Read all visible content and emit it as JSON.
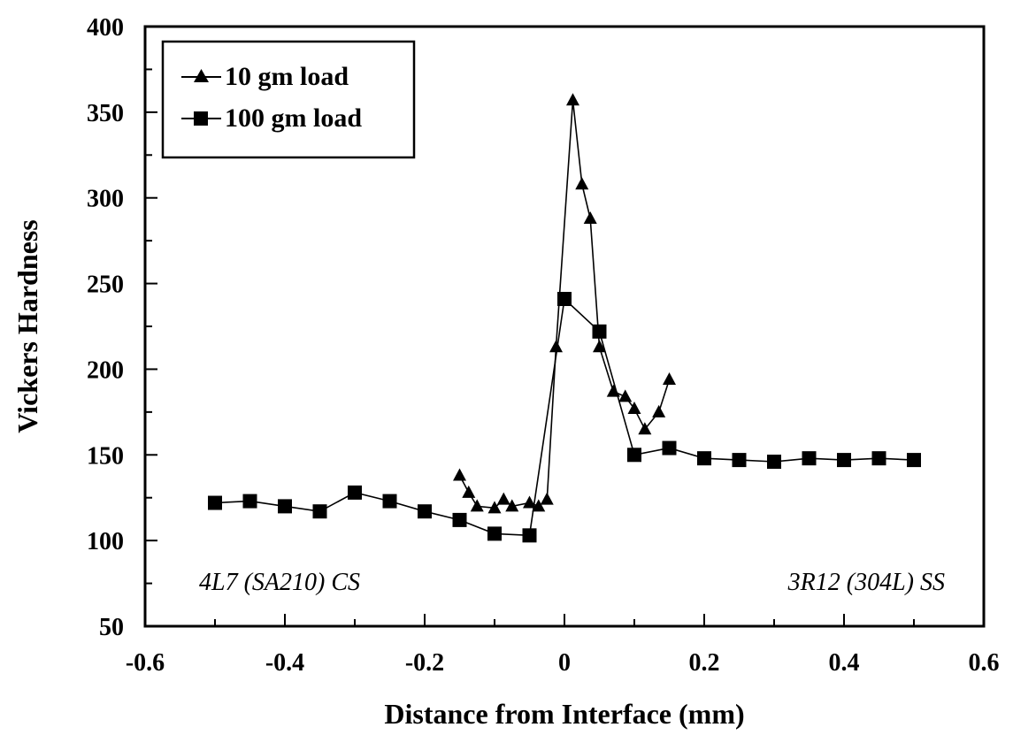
{
  "chart_data": {
    "type": "line",
    "xlabel": "Distance from Interface (mm)",
    "ylabel": "Vickers Hardness",
    "xlim": [
      -0.6,
      0.6
    ],
    "ylim": [
      50,
      400
    ],
    "xticks": [
      -0.6,
      -0.4,
      -0.2,
      0,
      0.2,
      0.4,
      0.6
    ],
    "xtick_labels": [
      "-0.6",
      "-0.4",
      "-0.2",
      "0",
      "0.2",
      "0.4",
      "0.6"
    ],
    "yticks": [
      50,
      100,
      150,
      200,
      250,
      300,
      350,
      400
    ],
    "ytick_labels": [
      "50",
      "100",
      "150",
      "200",
      "250",
      "300",
      "350",
      "400"
    ],
    "grid": false,
    "legend_position": "top-left",
    "annotations": [
      {
        "text": "4L7 (SA210) CS",
        "x": -0.54,
        "y": 80
      },
      {
        "text": "3R12 (304L) SS",
        "x": 0.56,
        "y": 80
      }
    ],
    "series": [
      {
        "name": "10 gm load",
        "marker": "triangle",
        "color": "#000000",
        "x": [
          -0.15,
          -0.137,
          -0.125,
          -0.1,
          -0.087,
          -0.075,
          -0.05,
          -0.037,
          -0.025,
          -0.012,
          0.012,
          0.025,
          0.037,
          0.05,
          0.07,
          0.087,
          0.1,
          0.115,
          0.135,
          0.15
        ],
        "y": [
          138,
          128,
          120,
          119,
          124,
          120,
          122,
          120,
          124,
          213,
          357,
          308,
          288,
          213,
          187,
          184,
          177,
          165,
          175,
          194
        ]
      },
      {
        "name": "100 gm load",
        "marker": "square",
        "color": "#000000",
        "x": [
          -0.5,
          -0.45,
          -0.4,
          -0.35,
          -0.3,
          -0.25,
          -0.2,
          -0.15,
          -0.1,
          -0.05,
          0,
          0.05,
          0.1,
          0.15,
          0.2,
          0.25,
          0.3,
          0.35,
          0.4,
          0.45,
          0.5
        ],
        "y": [
          122,
          123,
          120,
          117,
          128,
          123,
          117,
          112,
          104,
          103,
          241,
          222,
          150,
          154,
          148,
          147,
          146,
          148,
          147,
          148,
          147
        ]
      }
    ]
  }
}
